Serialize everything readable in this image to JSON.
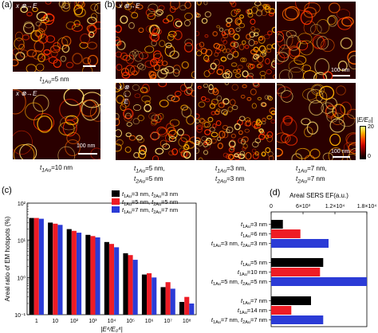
{
  "panels": {
    "a": {
      "letter": "(a)",
      "label_top": "t",
      "label_top_sub": "1Au",
      "label_top_val": "=5 nm",
      "label_bot": "t",
      "label_bot_sub": "1Au",
      "label_bot_val": "=10 nm",
      "scalebar_bottom": "100 nm",
      "polarization": "E"
    },
    "b": {
      "letter": "(b)",
      "scalebar_top": "100 nm",
      "scalebar_bottom": "100 nm",
      "polarization_top": "E",
      "polarization_bottom": "E",
      "col_labels": [
        {
          "line1_var": "t",
          "line1_sub": "1Au",
          "line1_val": "=5 nm,",
          "line2_var": "t",
          "line2_sub": "2Au",
          "line2_val": "=5 nm"
        },
        {
          "line1_var": "t",
          "line1_sub": "1Au",
          "line1_val": "=3 nm,",
          "line2_var": "t",
          "line2_sub": "2Au",
          "line2_val": "=3 nm"
        },
        {
          "line1_var": "t",
          "line1_sub": "1Au",
          "line1_val": "=7 nm,",
          "line2_var": "t",
          "line2_sub": "2Au",
          "line2_val": "=7 nm"
        }
      ],
      "colorbar": {
        "title": "|E/E₀|",
        "max": "20",
        "min": "0",
        "colors": [
          "#000000",
          "#5a0000",
          "#c00000",
          "#ff4000",
          "#ffb000",
          "#ffff80"
        ]
      }
    },
    "c": {
      "letter": "(c)",
      "ylabel": "Areal ratio of EM hotspots (%)"
    }
  },
  "chart_data": [
    {
      "type": "bar",
      "panel": "c",
      "xlabel": "|E⁴/E₀⁴|",
      "ylabel": "Areal ratio of EM hotspots (%)",
      "yscale": "log",
      "ylim": [
        0.1,
        100
      ],
      "yticks": [
        "10⁻¹",
        "10⁰",
        "10¹",
        "10²"
      ],
      "categories": [
        "1",
        "10",
        "10²",
        "10³",
        "10⁴",
        "10⁵",
        "10⁶",
        "10⁷",
        "10⁸"
      ],
      "series": [
        {
          "name": "t1Au=3 nm, t2Au=3 nm",
          "name_parts": [
            "t",
            "1Au",
            "=3 nm, ",
            "t",
            "2Au",
            "=3 nm"
          ],
          "color": "#000000",
          "values": [
            40,
            30,
            20,
            14,
            9,
            4.5,
            1.2,
            0.55,
            0.22
          ]
        },
        {
          "name": "t1Au=5 nm, t2Au=5 nm",
          "name_parts": [
            "t",
            "1Au",
            "=5 nm, ",
            "t",
            "2Au",
            "=5 nm"
          ],
          "color": "#ee1c25",
          "values": [
            40,
            28,
            18,
            13,
            8,
            4,
            1.3,
            0.75,
            0.3
          ]
        },
        {
          "name": "t1Au=7 nm, t2Au=7 nm",
          "name_parts": [
            "t",
            "1Au",
            "=7 nm, ",
            "t",
            "2Au",
            "=7 nm"
          ],
          "color": "#2b3bd6",
          "values": [
            38,
            26,
            16,
            12,
            6.5,
            3,
            1.0,
            0.5,
            0.2
          ]
        }
      ]
    },
    {
      "type": "bar",
      "panel": "d",
      "orientation": "horizontal",
      "letter": "(d)",
      "title": "Areal SERS EF(a.u.)",
      "xlim": [
        0,
        18000
      ],
      "xticks": [
        {
          "value": 0,
          "label": "0"
        },
        {
          "value": 6000,
          "label": "6×10³"
        },
        {
          "value": 12000,
          "label": "1.2×10⁴"
        },
        {
          "value": 18000,
          "label": "1.8×10⁴"
        }
      ],
      "groups": [
        {
          "labels": [
            [
              "t",
              "1Au",
              "=3 nm"
            ],
            [
              "t",
              "1Au",
              "=6 nm"
            ],
            [
              "t",
              "1Au",
              "=3 nm, ",
              "t",
              "2Au",
              "=3 nm"
            ]
          ],
          "values": [
            2200,
            5500,
            10800
          ],
          "colors": [
            "#000000",
            "#ee1c25",
            "#2b3bd6"
          ]
        },
        {
          "labels": [
            [
              "t",
              "1Au",
              "=5 nm"
            ],
            [
              "t",
              "1Au",
              "=10 nm"
            ],
            [
              "t",
              "1Au",
              "=5 nm, ",
              "t",
              "2Au",
              "=5 nm"
            ]
          ],
          "values": [
            9800,
            9200,
            18000
          ],
          "colors": [
            "#000000",
            "#ee1c25",
            "#2b3bd6"
          ]
        },
        {
          "labels": [
            [
              "t",
              "1Au",
              "=7 nm"
            ],
            [
              "t",
              "1Au",
              "=14 nm"
            ],
            [
              "t",
              "1Au",
              "=7 nm, ",
              "t",
              "2Au",
              "=7 nm"
            ]
          ],
          "values": [
            7500,
            3800,
            9800
          ],
          "colors": [
            "#000000",
            "#ee1c25",
            "#2b3bd6"
          ]
        }
      ]
    }
  ]
}
